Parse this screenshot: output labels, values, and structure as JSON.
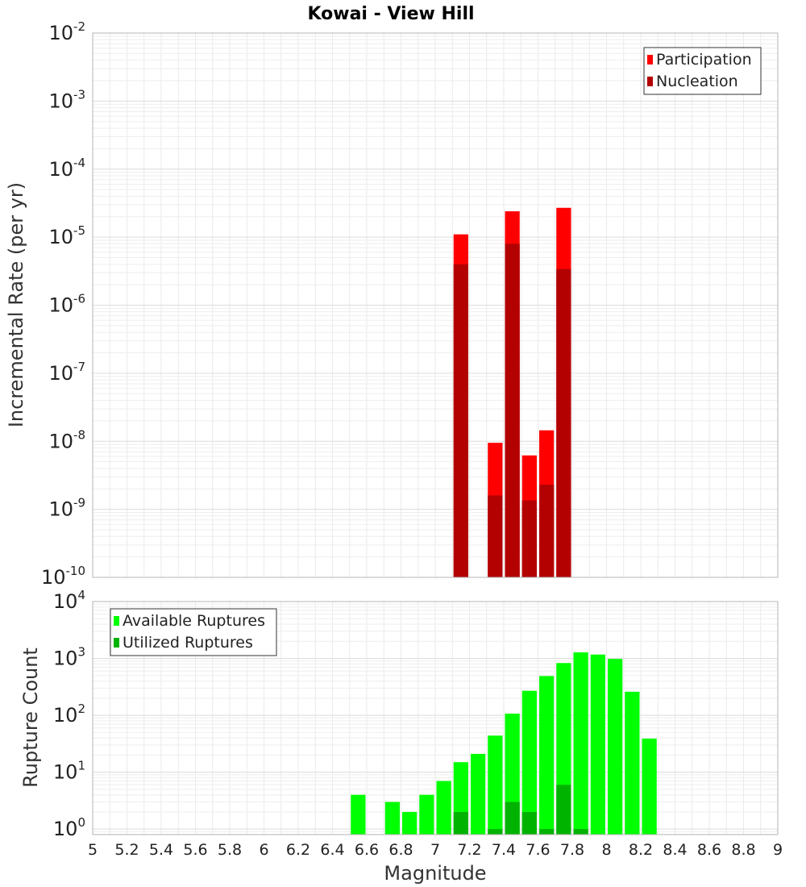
{
  "chart_data": [
    {
      "type": "bar",
      "title": "Kowai - View Hill",
      "ylabel": "Incremental Rate (per yr)",
      "xlabel": "",
      "x_range": [
        5,
        9
      ],
      "y_scale": "log",
      "ylim": [
        1e-10,
        0.01
      ],
      "y_ticks": [
        "10-10",
        "10-9",
        "10-8",
        "10-7",
        "10-6",
        "10-5",
        "10-4",
        "10-3",
        "10-2"
      ],
      "y_tick_labels": [
        {
          "base": "10",
          "exp": "-10"
        },
        {
          "base": "10",
          "exp": "-9"
        },
        {
          "base": "10",
          "exp": "-8"
        },
        {
          "base": "10",
          "exp": "-7"
        },
        {
          "base": "10",
          "exp": "-6"
        },
        {
          "base": "10",
          "exp": "-5"
        },
        {
          "base": "10",
          "exp": "-4"
        },
        {
          "base": "10",
          "exp": "-3"
        },
        {
          "base": "10",
          "exp": "-2"
        }
      ],
      "grid": true,
      "legend_position": "top-right",
      "bar_width": 0.1,
      "series": [
        {
          "name": "Participation",
          "color": "#ff0000",
          "points": [
            {
              "x": 7.15,
              "y": 1.1e-05
            },
            {
              "x": 7.35,
              "y": 9.5e-09
            },
            {
              "x": 7.45,
              "y": 2.4e-05
            },
            {
              "x": 7.55,
              "y": 6.2e-09
            },
            {
              "x": 7.65,
              "y": 1.45e-08
            },
            {
              "x": 7.75,
              "y": 2.7e-05
            }
          ]
        },
        {
          "name": "Nucleation",
          "color": "#b30000",
          "points": [
            {
              "x": 7.15,
              "y": 4e-06
            },
            {
              "x": 7.35,
              "y": 1.6e-09
            },
            {
              "x": 7.45,
              "y": 8e-06
            },
            {
              "x": 7.55,
              "y": 1.35e-09
            },
            {
              "x": 7.65,
              "y": 2.3e-09
            },
            {
              "x": 7.75,
              "y": 3.4e-06
            }
          ]
        }
      ]
    },
    {
      "type": "bar",
      "title": "",
      "ylabel": "Rupture Count",
      "xlabel": "Magnitude",
      "x_range": [
        5,
        9
      ],
      "x_ticks": [
        "5",
        "5.2",
        "5.4",
        "5.6",
        "5.8",
        "6",
        "6.2",
        "6.4",
        "6.6",
        "6.8",
        "7",
        "7.2",
        "7.4",
        "7.6",
        "7.8",
        "8",
        "8.2",
        "8.4",
        "8.6",
        "8.8",
        "9"
      ],
      "y_scale": "log",
      "ylim": [
        0.8,
        10000.0
      ],
      "y_ticks": [
        "10^0",
        "10^1",
        "10^2",
        "10^3",
        "10^4"
      ],
      "y_tick_labels": [
        {
          "base": "10",
          "exp": "0"
        },
        {
          "base": "10",
          "exp": "1"
        },
        {
          "base": "10",
          "exp": "2"
        },
        {
          "base": "10",
          "exp": "3"
        },
        {
          "base": "10",
          "exp": "4"
        }
      ],
      "grid": true,
      "legend_position": "top-left",
      "bar_width": 0.1,
      "series": [
        {
          "name": "Available Ruptures",
          "color": "#00ff00",
          "points": [
            {
              "x": 6.55,
              "y": 4
            },
            {
              "x": 6.75,
              "y": 3
            },
            {
              "x": 6.85,
              "y": 2
            },
            {
              "x": 6.95,
              "y": 4
            },
            {
              "x": 7.05,
              "y": 7
            },
            {
              "x": 7.15,
              "y": 15
            },
            {
              "x": 7.25,
              "y": 21
            },
            {
              "x": 7.35,
              "y": 44
            },
            {
              "x": 7.45,
              "y": 107
            },
            {
              "x": 7.55,
              "y": 270
            },
            {
              "x": 7.65,
              "y": 490
            },
            {
              "x": 7.75,
              "y": 830
            },
            {
              "x": 7.85,
              "y": 1280
            },
            {
              "x": 7.95,
              "y": 1170
            },
            {
              "x": 8.05,
              "y": 980
            },
            {
              "x": 8.15,
              "y": 260
            },
            {
              "x": 8.25,
              "y": 39
            }
          ]
        },
        {
          "name": "Utilized Ruptures",
          "color": "#00b300",
          "points": [
            {
              "x": 7.15,
              "y": 2
            },
            {
              "x": 7.35,
              "y": 1
            },
            {
              "x": 7.45,
              "y": 3
            },
            {
              "x": 7.55,
              "y": 2
            },
            {
              "x": 7.65,
              "y": 1
            },
            {
              "x": 7.75,
              "y": 6
            },
            {
              "x": 7.85,
              "y": 1
            }
          ]
        }
      ]
    }
  ]
}
